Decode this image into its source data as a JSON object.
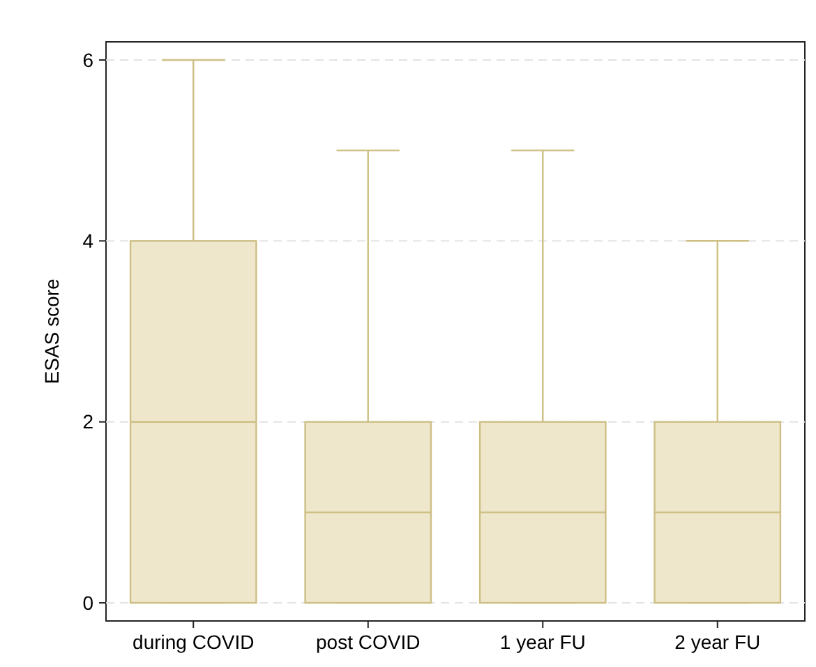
{
  "chart_data": {
    "type": "box",
    "ylabel": "ESAS score",
    "categories": [
      "during COVID",
      "post COVID",
      "1 year FU",
      "2 year FU"
    ],
    "boxes": [
      {
        "low": 0,
        "q1": 0,
        "median": 2,
        "q3": 4,
        "high": 6
      },
      {
        "low": 0,
        "q1": 0,
        "median": 1,
        "q3": 2,
        "high": 5
      },
      {
        "low": 0,
        "q1": 0,
        "median": 1,
        "q3": 2,
        "high": 5
      },
      {
        "low": 0,
        "q1": 0,
        "median": 1,
        "q3": 2,
        "high": 4
      }
    ],
    "color": "#efe7cb",
    "ylim": [
      -0.2,
      6.2
    ],
    "yticks": [
      0,
      2,
      4,
      6
    ],
    "grid": "y"
  }
}
